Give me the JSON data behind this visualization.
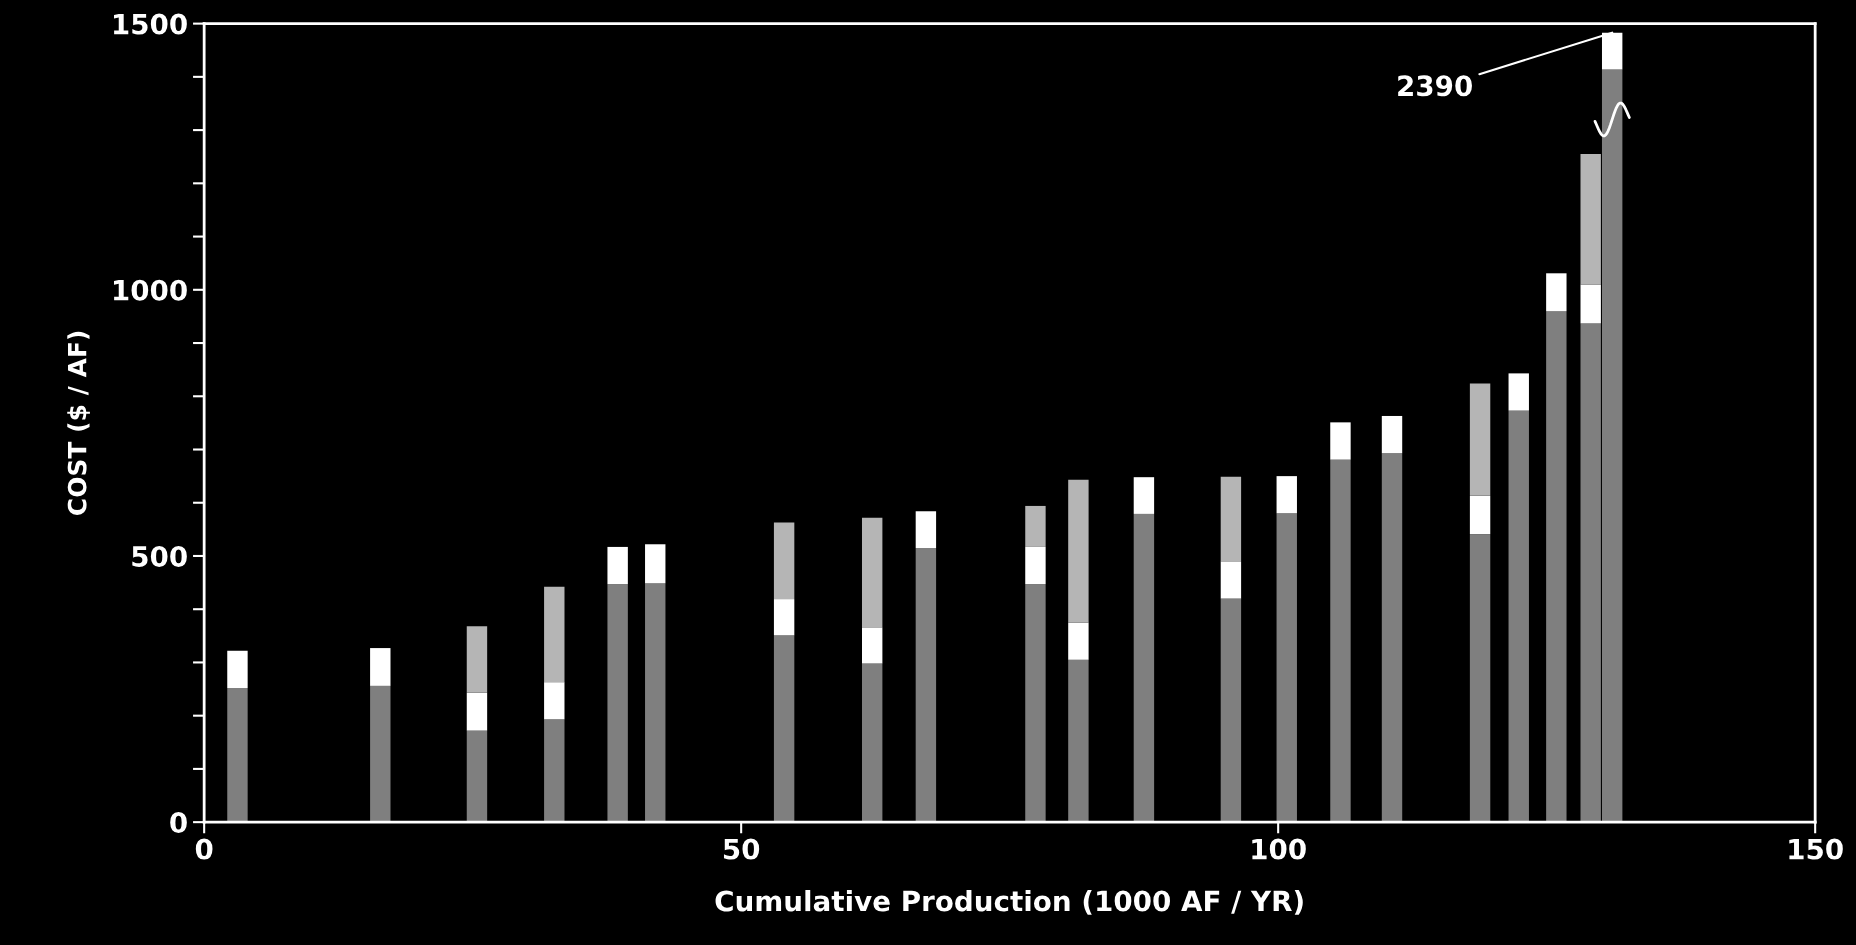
{
  "chart_data": {
    "type": "bar",
    "stacked": true,
    "xlabel": "Cumulative Production (1000 AF / YR)",
    "ylabel": "COST ($ / AF)",
    "x": [
      3.1,
      16.4,
      25.4,
      32.6,
      38.5,
      42.0,
      54.0,
      62.2,
      67.2,
      77.4,
      81.4,
      87.5,
      95.6,
      100.8,
      105.8,
      110.6,
      118.8,
      122.4,
      125.9,
      129.1,
      131.1
    ],
    "series": [
      {
        "color": "#7f7f7f",
        "values": [
          252,
          256,
          172,
          193,
          447,
          449,
          351,
          298,
          515,
          447,
          305,
          579,
          420,
          580,
          681,
          693,
          541,
          773,
          960,
          937,
          1414
        ]
      },
      {
        "color": "#ffffff",
        "values": [
          70,
          71,
          71,
          70,
          70,
          73,
          68,
          68,
          69,
          70,
          70,
          69,
          70,
          70,
          70,
          70,
          72,
          70,
          71,
          73,
          69
        ]
      },
      {
        "color": "#b5b5b5",
        "values": [
          null,
          null,
          125,
          179,
          null,
          null,
          144,
          206,
          null,
          77,
          268,
          null,
          159,
          null,
          null,
          null,
          211,
          null,
          null,
          245,
          null
        ]
      }
    ],
    "xlim": [
      0,
      150
    ],
    "xticks": [
      0,
      50,
      100,
      150
    ],
    "ylim": [
      0,
      1500
    ],
    "yticks": [
      0,
      {
        "value": 100,
        "label": null
      },
      {
        "value": 200,
        "label": null
      },
      {
        "value": 300,
        "label": null
      },
      {
        "value": 400,
        "label": null
      },
      500,
      {
        "value": 600,
        "label": null
      },
      {
        "value": 700,
        "label": null
      },
      {
        "value": 800,
        "label": null
      },
      {
        "value": 900,
        "label": null
      },
      1000,
      {
        "value": 1100,
        "label": null
      },
      {
        "value": 1200,
        "label": null
      },
      {
        "value": 1300,
        "label": null
      },
      {
        "value": 1400,
        "label": null
      },
      1500
    ],
    "annotations": [
      {
        "text": "2390",
        "x": 131.1,
        "y": 1483
      }
    ],
    "grid": false,
    "legend": false
  }
}
